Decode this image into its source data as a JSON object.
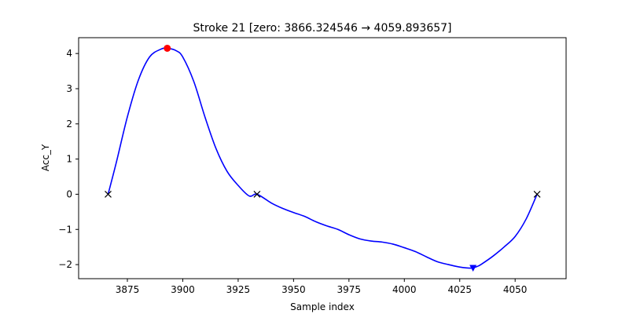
{
  "chart_data": {
    "type": "line",
    "title": "Stroke 21 [zero: 3866.324546 → 4059.893657]",
    "xlabel": "Sample index",
    "ylabel": "Acc_Y",
    "xlim": [
      3853,
      4073
    ],
    "ylim": [
      -2.4,
      4.45
    ],
    "xticks": [
      3875,
      3900,
      3925,
      3950,
      3975,
      4000,
      4025,
      4050
    ],
    "yticks": [
      -2,
      -1,
      0,
      1,
      2,
      3,
      4
    ],
    "grid": false,
    "colors": {
      "line": "#0000ff",
      "peak": "#ff0000",
      "trough": "#0000ff",
      "zero": "#000000"
    },
    "series": [
      {
        "x": [
          3866.3,
          3870,
          3875,
          3880,
          3885,
          3890,
          3893,
          3897,
          3900,
          3905,
          3910,
          3915,
          3920,
          3925,
          3930,
          3933.5,
          3940,
          3945,
          3950,
          3955,
          3960,
          3965,
          3970,
          3975,
          3980,
          3985,
          3990,
          3995,
          4000,
          4005,
          4010,
          4015,
          4020,
          4025,
          4030,
          4033,
          4035,
          4040,
          4045,
          4050,
          4055,
          4059.9
        ],
        "y": [
          0,
          0.9,
          2.2,
          3.25,
          3.9,
          4.12,
          4.15,
          4.08,
          3.9,
          3.2,
          2.2,
          1.3,
          0.65,
          0.25,
          -0.05,
          0,
          -0.25,
          -0.4,
          -0.52,
          -0.63,
          -0.78,
          -0.9,
          -1.0,
          -1.15,
          -1.27,
          -1.33,
          -1.36,
          -1.42,
          -1.52,
          -1.63,
          -1.78,
          -1.92,
          -2.0,
          -2.07,
          -2.1,
          -2.05,
          -1.98,
          -1.76,
          -1.5,
          -1.2,
          -0.7,
          0
        ]
      }
    ],
    "markers": {
      "peak": {
        "x": 3893,
        "y": 4.15,
        "shape": "circle"
      },
      "trough": {
        "x": 4031,
        "y": -2.1,
        "shape": "triangle-down"
      },
      "zeros": [
        {
          "x": 3866.3,
          "y": 0
        },
        {
          "x": 3933.5,
          "y": 0
        },
        {
          "x": 4059.9,
          "y": 0
        }
      ]
    }
  }
}
